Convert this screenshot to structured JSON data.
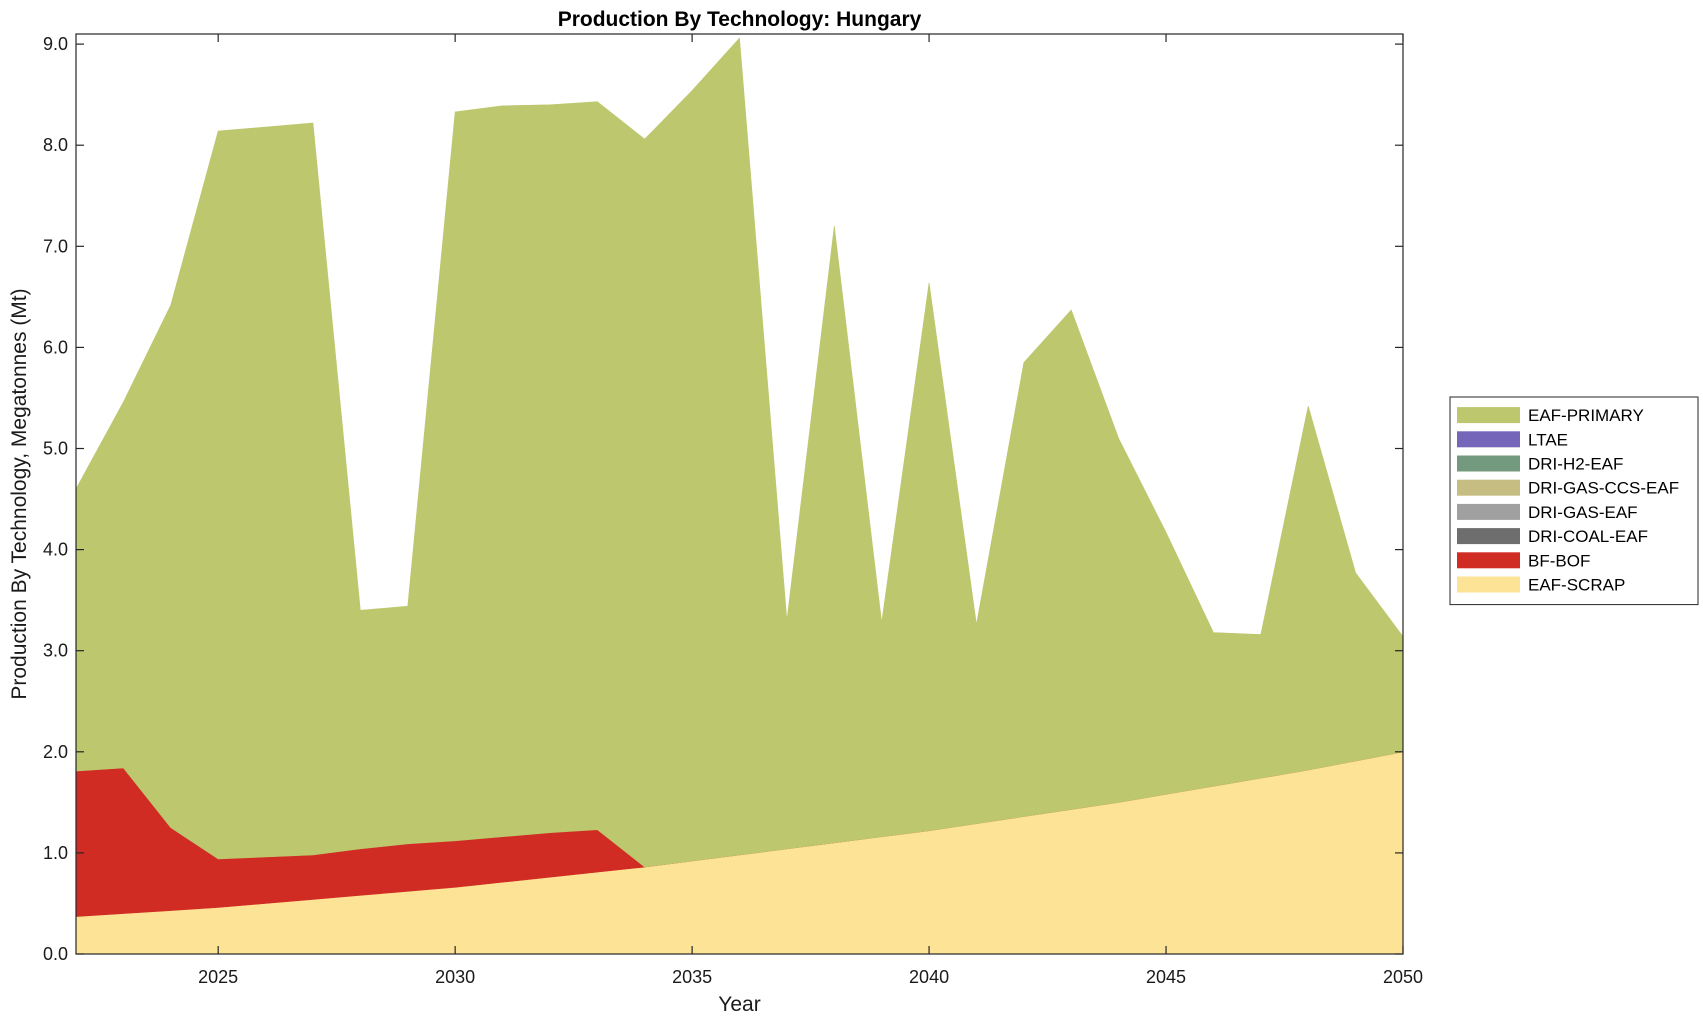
{
  "chart_data": {
    "type": "area",
    "stacked": true,
    "title": "Production By Technology: Hungary",
    "xlabel": "Year",
    "ylabel": "Production By Technology, Megatonnes (Mt)",
    "xlim": [
      2022,
      2050
    ],
    "ylim": [
      0,
      9.1
    ],
    "xticks": [
      2025,
      2030,
      2035,
      2040,
      2045,
      2050
    ],
    "xtick_labels": [
      "2025",
      "2030",
      "2035",
      "2040",
      "2045",
      "2050"
    ],
    "yticks": [
      0,
      1,
      2,
      3,
      4,
      5,
      6,
      7,
      8,
      9
    ],
    "ytick_labels": [
      "0.0",
      "1.0",
      "2.0",
      "3.0",
      "4.0",
      "5.0",
      "6.0",
      "7.0",
      "8.0",
      "9.0"
    ],
    "grid": false,
    "legend_position": "right",
    "x": [
      2022,
      2023,
      2024,
      2025,
      2026,
      2027,
      2028,
      2029,
      2030,
      2031,
      2032,
      2033,
      2034,
      2035,
      2036,
      2037,
      2038,
      2039,
      2040,
      2041,
      2042,
      2043,
      2044,
      2045,
      2046,
      2047,
      2048,
      2049,
      2050
    ],
    "series": [
      {
        "name": "EAF-SCRAP",
        "color": "#fde395",
        "values": [
          0.37,
          0.4,
          0.43,
          0.46,
          0.5,
          0.54,
          0.58,
          0.62,
          0.66,
          0.71,
          0.76,
          0.81,
          0.86,
          0.92,
          0.98,
          1.04,
          1.1,
          1.16,
          1.22,
          1.29,
          1.36,
          1.43,
          1.5,
          1.58,
          1.66,
          1.74,
          1.82,
          1.91,
          2.0
        ]
      },
      {
        "name": "BF-BOF",
        "color": "#d12c24",
        "values": [
          1.44,
          1.44,
          0.82,
          0.48,
          0.46,
          0.44,
          0.46,
          0.47,
          0.46,
          0.45,
          0.44,
          0.42,
          0.0,
          0.0,
          0.0,
          0.0,
          0.0,
          0.0,
          0.0,
          0.0,
          0.0,
          0.0,
          0.0,
          0.0,
          0.0,
          0.0,
          0.0,
          0.0,
          0.0
        ]
      },
      {
        "name": "DRI-COAL-EAF",
        "color": "#6e6e6e",
        "values": [
          0,
          0,
          0,
          0,
          0,
          0,
          0,
          0,
          0,
          0,
          0,
          0,
          0,
          0,
          0,
          0,
          0,
          0,
          0,
          0,
          0,
          0,
          0,
          0,
          0,
          0,
          0,
          0,
          0
        ]
      },
      {
        "name": "DRI-GAS-EAF",
        "color": "#a0a0a0",
        "values": [
          0,
          0,
          0,
          0,
          0,
          0,
          0,
          0,
          0,
          0,
          0,
          0,
          0,
          0,
          0,
          0,
          0,
          0,
          0,
          0,
          0,
          0,
          0,
          0,
          0,
          0,
          0,
          0,
          0
        ]
      },
      {
        "name": "DRI-GAS-CCS-EAF",
        "color": "#c6bd83",
        "values": [
          0,
          0,
          0,
          0,
          0,
          0,
          0,
          0,
          0,
          0,
          0,
          0,
          0,
          0,
          0,
          0,
          0,
          0,
          0,
          0,
          0,
          0,
          0,
          0,
          0,
          0,
          0,
          0,
          0
        ]
      },
      {
        "name": "DRI-H2-EAF",
        "color": "#739a7e",
        "values": [
          0,
          0,
          0,
          0,
          0,
          0,
          0,
          0,
          0,
          0,
          0,
          0,
          0,
          0,
          0,
          0,
          0,
          0,
          0,
          0,
          0,
          0,
          0,
          0,
          0,
          0,
          0,
          0,
          0
        ]
      },
      {
        "name": "LTAE",
        "color": "#7566b9",
        "values": [
          0,
          0,
          0,
          0,
          0,
          0,
          0,
          0,
          0,
          0,
          0,
          0,
          0,
          0,
          0,
          0,
          0,
          0,
          0,
          0,
          0,
          0,
          0,
          0,
          0,
          0,
          0,
          0,
          0
        ]
      },
      {
        "name": "EAF-PRIMARY",
        "color": "#bdc76d",
        "values": [
          2.79,
          3.62,
          5.17,
          7.2,
          7.22,
          7.24,
          2.36,
          2.35,
          7.21,
          7.23,
          7.2,
          7.2,
          7.2,
          7.62,
          8.08,
          2.26,
          6.1,
          2.12,
          5.42,
          1.97,
          4.49,
          4.94,
          3.6,
          2.59,
          1.52,
          1.42,
          3.6,
          1.86,
          1.14
        ]
      }
    ],
    "legend_order": [
      "EAF-PRIMARY",
      "LTAE",
      "DRI-H2-EAF",
      "DRI-GAS-CCS-EAF",
      "DRI-GAS-EAF",
      "DRI-COAL-EAF",
      "BF-BOF",
      "EAF-SCRAP"
    ]
  }
}
